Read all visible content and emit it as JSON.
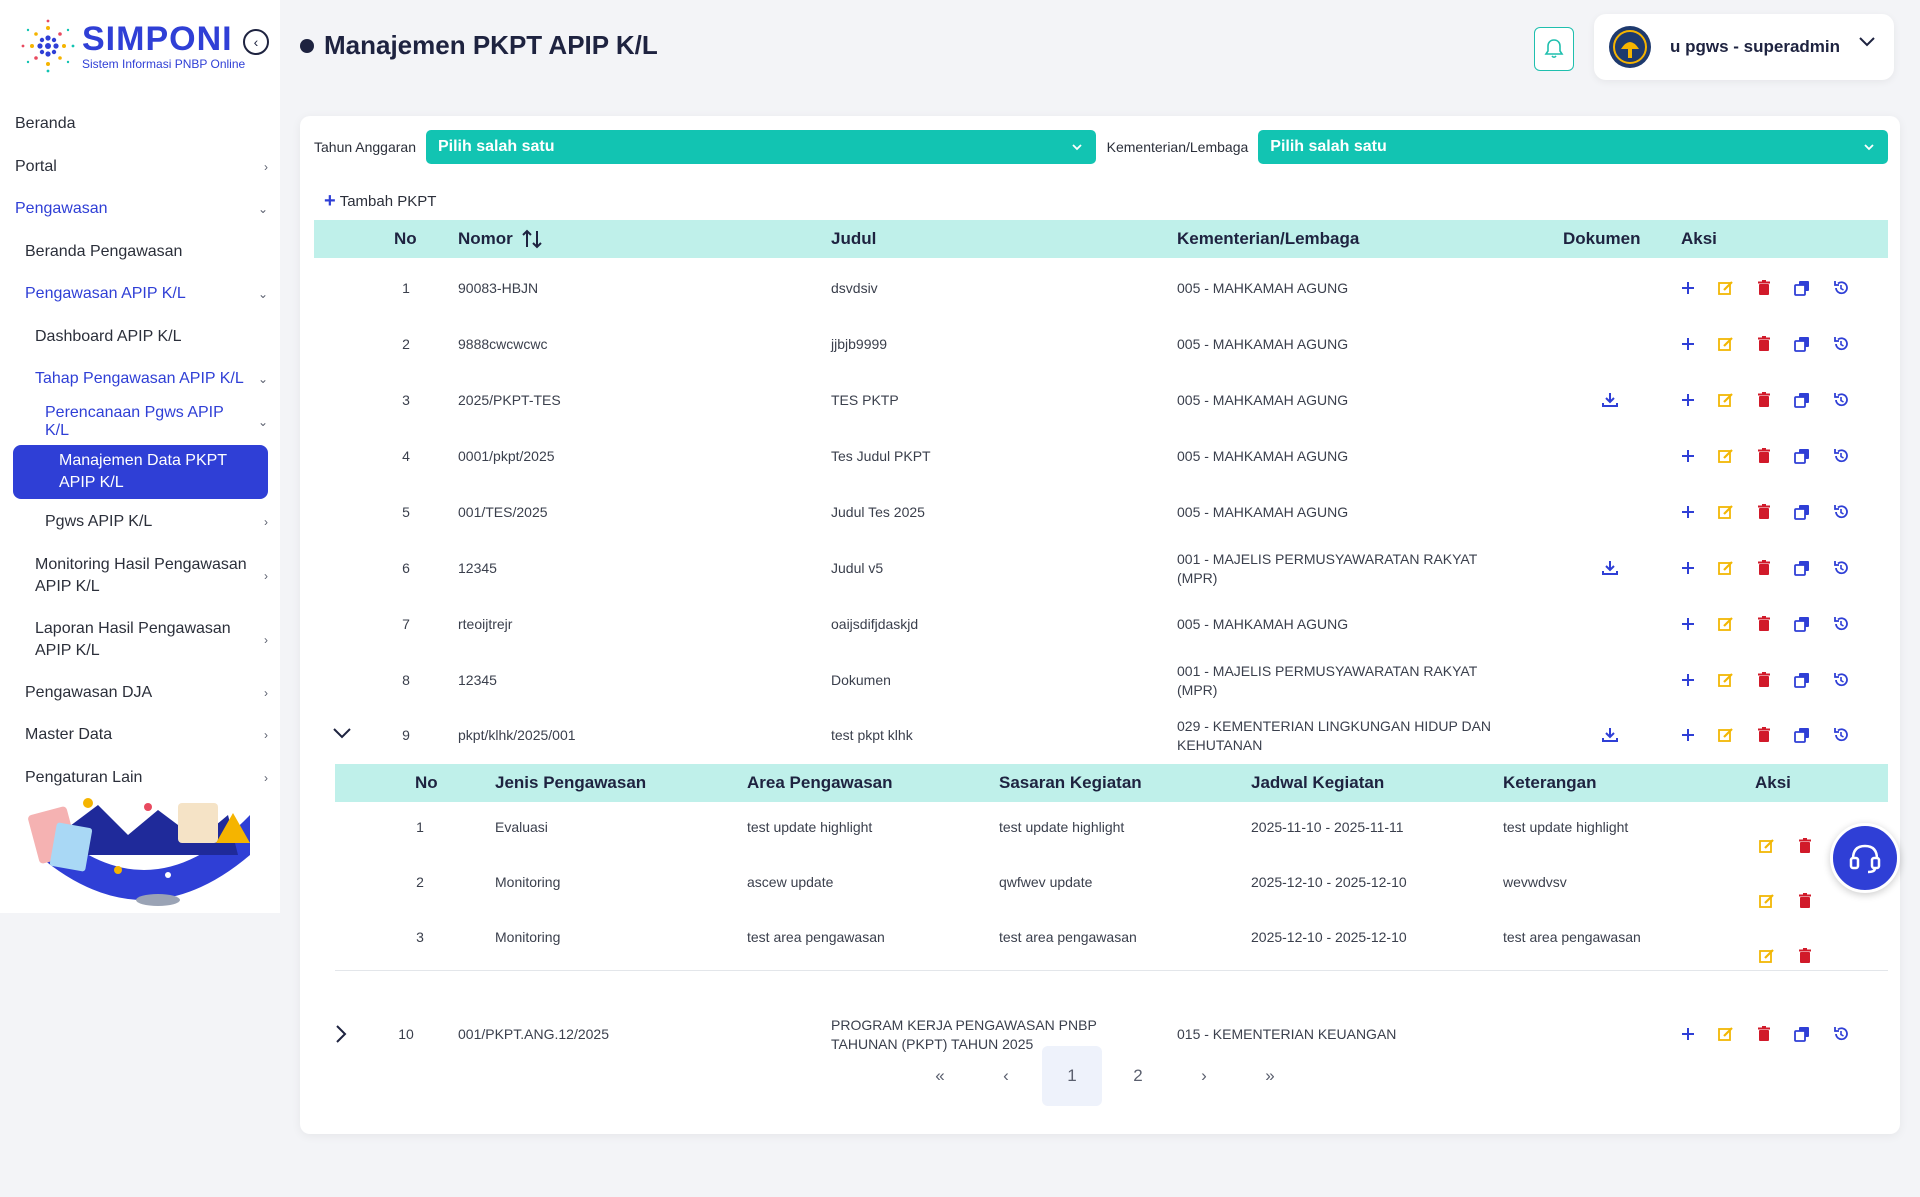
{
  "brand": {
    "title": "SIMPONI",
    "subtitle": "Sistem Informasi PNBP Online"
  },
  "sidebar": {
    "items": [
      {
        "label": "Beranda"
      },
      {
        "label": "Portal"
      },
      {
        "label": "Pengawasan"
      },
      {
        "label": "Beranda Pengawasan"
      },
      {
        "label": "Pengawasan APIP K/L"
      },
      {
        "label": "Dashboard APIP K/L"
      },
      {
        "label": "Tahap Pengawasan APIP K/L"
      },
      {
        "label": "Perencanaan Pgws APIP K/L"
      },
      {
        "label": "Manajemen Data PKPT APIP K/L"
      },
      {
        "label": "Pgws APIP K/L"
      },
      {
        "label": "Monitoring Hasil Pengawasan APIP K/L"
      },
      {
        "label": "Laporan Hasil Pengawasan APIP K/L"
      },
      {
        "label": "Pengawasan DJA"
      },
      {
        "label": "Master Data"
      },
      {
        "label": "Pengaturan Lain"
      }
    ]
  },
  "header": {
    "title": "Manajemen PKPT APIP K/L",
    "user": "u pgws - superadmin"
  },
  "filters": {
    "year_label": "Tahun Anggaran",
    "year_value": "Pilih salah satu",
    "kl_label": "Kementerian/Lembaga",
    "kl_value": "Pilih salah satu"
  },
  "add_label": "Tambah PKPT",
  "table": {
    "headers": {
      "no": "No",
      "nomor": "Nomor",
      "judul": "Judul",
      "kl": "Kementerian/Lembaga",
      "dokumen": "Dokumen",
      "aksi": "Aksi"
    },
    "rows": [
      {
        "no": "1",
        "nomor": "90083-HBJN",
        "judul": "dsvdsiv",
        "kl": "005 - MAHKAMAH AGUNG",
        "doc": false
      },
      {
        "no": "2",
        "nomor": "9888cwcwcwc",
        "judul": "jjbjb9999",
        "kl": "005 - MAHKAMAH AGUNG",
        "doc": false
      },
      {
        "no": "3",
        "nomor": "2025/PKPT-TES",
        "judul": "TES PKTP",
        "kl": "005 - MAHKAMAH AGUNG",
        "doc": true
      },
      {
        "no": "4",
        "nomor": "0001/pkpt/2025",
        "judul": "Tes Judul PKPT",
        "kl": "005 - MAHKAMAH AGUNG",
        "doc": false
      },
      {
        "no": "5",
        "nomor": "001/TES/2025",
        "judul": "Judul Tes 2025",
        "kl": "005 - MAHKAMAH AGUNG",
        "doc": false
      },
      {
        "no": "6",
        "nomor": "12345",
        "judul": "Judul v5",
        "kl": "001 - MAJELIS PERMUSYAWARATAN RAKYAT (MPR)",
        "doc": true
      },
      {
        "no": "7",
        "nomor": "rteoijtrejr",
        "judul": "oaijsdifjdaskjd",
        "kl": "005 - MAHKAMAH AGUNG",
        "doc": false
      },
      {
        "no": "8",
        "nomor": "12345",
        "judul": "Dokumen",
        "kl": "001 - MAJELIS PERMUSYAWARATAN RAKYAT (MPR)",
        "doc": false
      },
      {
        "no": "9",
        "nomor": "pkpt/klhk/2025/001",
        "judul": "test pkpt klhk",
        "kl": "029 - KEMENTERIAN LINGKUNGAN HIDUP DAN KEHUTANAN",
        "doc": true
      },
      {
        "no": "10",
        "nomor": "001/PKPT.ANG.12/2025",
        "judul": "PROGRAM KERJA PENGAWASAN PNBP TAHUNAN (PKPT) TAHUN 2025",
        "kl": "015 - KEMENTERIAN KEUANGAN",
        "doc": false
      }
    ]
  },
  "subtable": {
    "headers": {
      "no": "No",
      "jenis": "Jenis Pengawasan",
      "area": "Area Pengawasan",
      "sasaran": "Sasaran Kegiatan",
      "jadwal": "Jadwal Kegiatan",
      "ket": "Keterangan",
      "aksi": "Aksi"
    },
    "rows": [
      {
        "no": "1",
        "jenis": "Evaluasi",
        "area": "test update highlight",
        "sasaran": "test update highlight",
        "jadwal": "2025-11-10 - 2025-11-11",
        "ket": "test update highlight"
      },
      {
        "no": "2",
        "jenis": "Monitoring",
        "area": "ascew update",
        "sasaran": "qwfwev update",
        "jadwal": "2025-12-10 - 2025-12-10",
        "ket": "wevwdvsv"
      },
      {
        "no": "3",
        "jenis": "Monitoring",
        "area": "test area pengawasan",
        "sasaran": "test area pengawasan",
        "jadwal": "2025-12-10 - 2025-12-10",
        "ket": "test area pengawasan"
      }
    ]
  },
  "pagination": {
    "first": "«",
    "prev": "‹",
    "pages": [
      "1",
      "2"
    ],
    "next": "›",
    "last": "»"
  },
  "colors": {
    "accent": "#2f3fd6",
    "teal": "#12c4b2",
    "header_bg": "#bff0ea",
    "danger": "#d11a2a",
    "edit": "#f2b705"
  }
}
